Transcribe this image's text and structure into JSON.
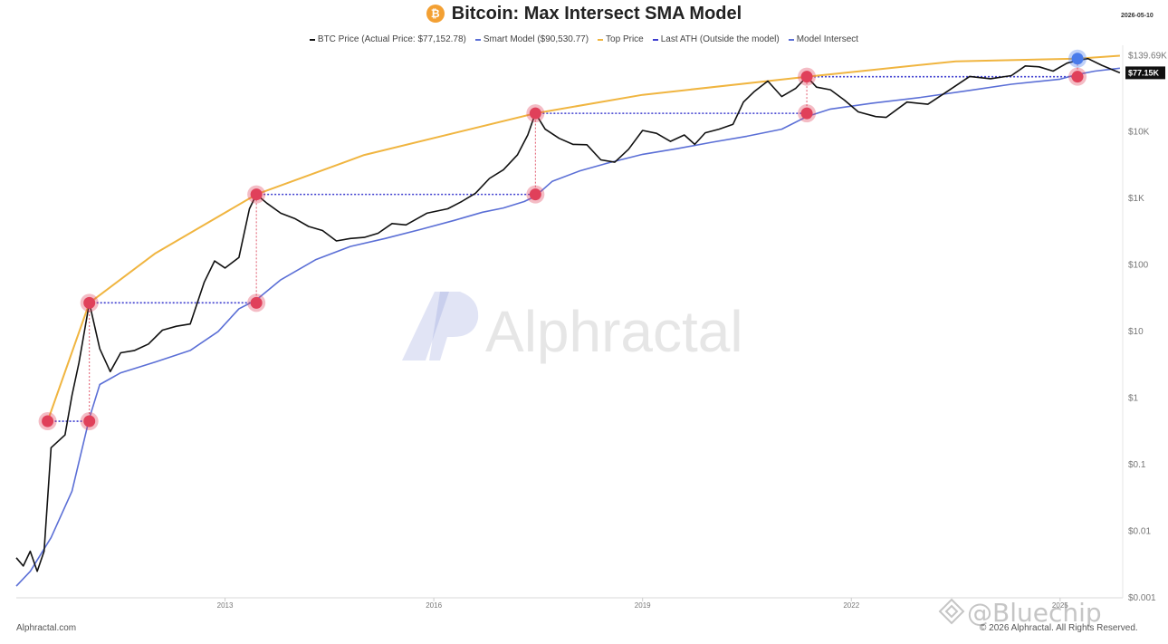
{
  "header": {
    "title": "Bitcoin: Max Intersect SMA Model",
    "logo_glyph": "₿",
    "date": "2026-05-10"
  },
  "legend": [
    {
      "label": "BTC Price (Actual Price: $77,152.78)",
      "color": "#111111"
    },
    {
      "label": "Smart Model ($90,530.77)",
      "color": "#5b6fd6"
    },
    {
      "label": "Top Price",
      "color": "#f0b540"
    },
    {
      "label": "Last ATH (Outside the model)",
      "color": "#3d3dcf"
    },
    {
      "label": "Model Intersect",
      "color": "#5b6fd6"
    }
  ],
  "footer": {
    "left": "Alphractal.com",
    "right": "© 2026 Alphractal. All Rights Reserved."
  },
  "watermark": {
    "brand": "Alphractal",
    "handle": "@Bluechip"
  },
  "colors": {
    "price": "#111111",
    "model": "#5b6fd6",
    "top": "#f0b540",
    "ath_line": "#3d3dcf",
    "intersect_marker": "#e0405a",
    "latest_marker": "#4a7bea",
    "vertical_connector": "#e05a6e"
  },
  "chart_data": {
    "type": "line",
    "y_scale": "log",
    "ylim": [
      0.001,
      200000
    ],
    "xlim": [
      2010.5,
      2026.4
    ],
    "y_ticks": [
      {
        "value": 139690,
        "label": "$139.69K"
      },
      {
        "value": 10000,
        "label": "$10K"
      },
      {
        "value": 1000,
        "label": "$1K"
      },
      {
        "value": 100,
        "label": "$100"
      },
      {
        "value": 10,
        "label": "$10"
      },
      {
        "value": 1,
        "label": "$1"
      },
      {
        "value": 0.1,
        "label": "$0.1"
      },
      {
        "value": 0.01,
        "label": "$0.01"
      },
      {
        "value": 0.001,
        "label": "$0.001"
      }
    ],
    "x_ticks": [
      {
        "value": 2013.5,
        "label": "2013"
      },
      {
        "value": 2016.5,
        "label": "2016"
      },
      {
        "value": 2019.5,
        "label": "2019"
      },
      {
        "value": 2022.5,
        "label": "2022"
      },
      {
        "value": 2025.5,
        "label": "2025"
      }
    ],
    "current_price_label": "$77.15K",
    "current_price": 77152.78,
    "series": [
      {
        "key": "price",
        "x": [
          2010.5,
          2010.6,
          2010.7,
          2010.8,
          2010.9,
          2011.0,
          2011.2,
          2011.3,
          2011.4,
          2011.55,
          2011.7,
          2011.85,
          2012.0,
          2012.2,
          2012.4,
          2012.6,
          2012.8,
          2013.0,
          2013.2,
          2013.35,
          2013.5,
          2013.7,
          2013.85,
          2013.95,
          2014.1,
          2014.3,
          2014.5,
          2014.7,
          2014.9,
          2015.1,
          2015.3,
          2015.5,
          2015.7,
          2015.9,
          2016.1,
          2016.4,
          2016.7,
          2016.9,
          2017.1,
          2017.3,
          2017.5,
          2017.7,
          2017.85,
          2017.96,
          2018.1,
          2018.3,
          2018.5,
          2018.7,
          2018.9,
          2019.1,
          2019.3,
          2019.5,
          2019.7,
          2019.9,
          2020.1,
          2020.25,
          2020.4,
          2020.6,
          2020.8,
          2020.95,
          2021.1,
          2021.3,
          2021.5,
          2021.7,
          2021.86,
          2022.0,
          2022.2,
          2022.4,
          2022.6,
          2022.85,
          2023.0,
          2023.3,
          2023.6,
          2023.9,
          2024.2,
          2024.5,
          2024.8,
          2025.0,
          2025.2,
          2025.4,
          2025.6,
          2025.75,
          2025.9,
          2026.1,
          2026.3,
          2026.36
        ],
        "y": [
          0.004,
          0.003,
          0.005,
          0.0025,
          0.005,
          0.18,
          0.28,
          1.1,
          3.4,
          27,
          5.5,
          2.5,
          4.8,
          5.2,
          6.5,
          10.5,
          12,
          13,
          55,
          115,
          90,
          130,
          700,
          1150,
          850,
          600,
          500,
          380,
          330,
          230,
          250,
          260,
          300,
          420,
          400,
          600,
          700,
          900,
          1200,
          2000,
          2700,
          4500,
          9000,
          19000,
          11000,
          8000,
          6500,
          6400,
          3800,
          3500,
          5500,
          10500,
          9500,
          7200,
          9000,
          6500,
          9700,
          11000,
          13000,
          28000,
          40000,
          58000,
          34000,
          45000,
          67500,
          47000,
          43000,
          30000,
          20000,
          17000,
          16500,
          28000,
          26000,
          42000,
          68000,
          63000,
          70000,
          98000,
          95000,
          82000,
          108000,
          118000,
          126000,
          100000,
          82000,
          77152.78
        ]
      },
      {
        "key": "model",
        "x": [
          2010.5,
          2010.7,
          2011.0,
          2011.3,
          2011.55,
          2011.7,
          2012.0,
          2012.5,
          2013.0,
          2013.4,
          2013.7,
          2013.95,
          2014.3,
          2014.8,
          2015.3,
          2015.8,
          2016.3,
          2016.8,
          2017.2,
          2017.5,
          2017.8,
          2017.96,
          2018.2,
          2018.6,
          2019.0,
          2019.5,
          2020.0,
          2020.5,
          2021.0,
          2021.5,
          2021.86,
          2022.2,
          2022.8,
          2023.5,
          2024.2,
          2024.8,
          2025.5,
          2025.75,
          2026.0,
          2026.36
        ],
        "y": [
          0.0015,
          0.0025,
          0.008,
          0.04,
          0.5,
          1.6,
          2.4,
          3.5,
          5.2,
          10,
          22,
          30,
          60,
          120,
          190,
          250,
          340,
          470,
          620,
          720,
          900,
          1080,
          1800,
          2600,
          3400,
          4600,
          5600,
          7000,
          8600,
          11000,
          17000,
          22000,
          27000,
          33000,
          42000,
          52000,
          62000,
          73000,
          82000,
          90530
        ]
      },
      {
        "key": "top",
        "x": [
          2010.95,
          2011.55,
          2012.5,
          2013.95,
          2015.5,
          2017.96,
          2019.5,
          2021.86,
          2024.0,
          2025.75,
          2026.36
        ],
        "y": [
          0.45,
          27,
          150,
          1150,
          4500,
          19000,
          36000,
          67500,
          115000,
          126000,
          139690
        ]
      }
    ],
    "ath_levels": [
      {
        "x_start": 2011.55,
        "x_end": 2013.95,
        "y": 27
      },
      {
        "x_start": 2013.95,
        "x_end": 2017.96,
        "y": 1150
      },
      {
        "x_start": 2017.96,
        "x_end": 2021.86,
        "y": 19000
      },
      {
        "x_start": 2021.86,
        "x_end": 2025.75,
        "y": 67500
      },
      {
        "x_start": 2010.95,
        "x_end": 2011.55,
        "y": 0.45
      }
    ],
    "intersect_markers": [
      {
        "x": 2010.95,
        "y": 0.45
      },
      {
        "x": 2011.55,
        "y": 0.45
      },
      {
        "x": 2011.55,
        "y": 27
      },
      {
        "x": 2013.95,
        "y": 27
      },
      {
        "x": 2013.95,
        "y": 1150
      },
      {
        "x": 2017.96,
        "y": 1150
      },
      {
        "x": 2017.96,
        "y": 19000
      },
      {
        "x": 2021.86,
        "y": 19000
      },
      {
        "x": 2021.86,
        "y": 67500
      },
      {
        "x": 2025.75,
        "y": 67500
      }
    ],
    "latest_marker": {
      "x": 2025.75,
      "y": 126000
    },
    "vertical_connectors": [
      {
        "x": 2011.55,
        "y1": 0.45,
        "y2": 27
      },
      {
        "x": 2013.95,
        "y1": 27,
        "y2": 1150
      },
      {
        "x": 2017.96,
        "y1": 1150,
        "y2": 19000
      },
      {
        "x": 2021.86,
        "y1": 19000,
        "y2": 67500
      },
      {
        "x": 2025.75,
        "y1": 67500,
        "y2": 126000
      }
    ]
  }
}
